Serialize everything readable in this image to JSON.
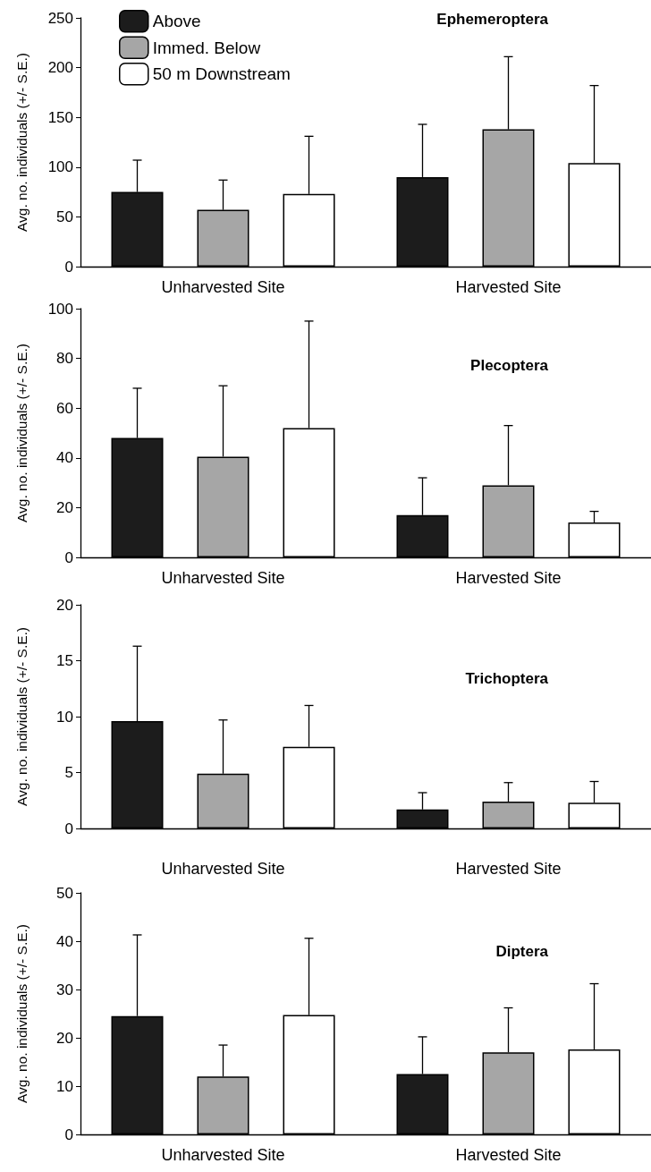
{
  "chart_data": [
    {
      "type": "bar",
      "title": "Ephemeroptera",
      "ylabel": "Avg. no. individuals (+/- S.E.)",
      "categories": [
        "Unharvested Site",
        "Harvested Site"
      ],
      "ylim": [
        0,
        250
      ],
      "yticks": [
        0,
        50,
        100,
        150,
        200,
        250
      ],
      "legend": "top left",
      "series": [
        {
          "name": "Above",
          "color": "#1c1c1c",
          "values": [
            75,
            90
          ],
          "errors": [
            [
              75,
              107
            ],
            [
              90,
              143
            ]
          ]
        },
        {
          "name": "Immed. Below",
          "color": "#a6a6a6",
          "values": [
            57,
            138
          ],
          "errors": [
            [
              57,
              87
            ],
            [
              138,
              211
            ]
          ]
        },
        {
          "name": "50 m Downstream",
          "color": "#ffffff",
          "values": [
            73,
            104
          ],
          "errors": [
            [
              73,
              131
            ],
            [
              104,
              182
            ]
          ]
        }
      ]
    },
    {
      "type": "bar",
      "title": "Plecoptera",
      "ylabel": "Avg. no. individuals (+/- S.E.)",
      "categories": [
        "Unharvested Site",
        "Harvested Site"
      ],
      "ylim": [
        0,
        100
      ],
      "yticks": [
        0,
        20,
        40,
        60,
        80,
        100
      ],
      "series": [
        {
          "color": "#1c1c1c",
          "values": [
            48,
            17
          ],
          "errors": [
            [
              48,
              68
            ],
            [
              17,
              32
            ]
          ]
        },
        {
          "color": "#a6a6a6",
          "values": [
            40.5,
            29
          ],
          "errors": [
            [
              40.5,
              69
            ],
            [
              29,
              53
            ]
          ]
        },
        {
          "color": "#ffffff",
          "values": [
            52,
            14
          ],
          "errors": [
            [
              52,
              95
            ],
            [
              14,
              18.5
            ]
          ]
        }
      ]
    },
    {
      "type": "bar",
      "title": "Trichoptera",
      "ylabel": "Avg. no. individuals (+/- S.E.)",
      "categories": [
        "Unharvested Site",
        "Harvested Site"
      ],
      "ylim": [
        0,
        20
      ],
      "yticks": [
        0,
        5,
        10,
        15,
        20
      ],
      "series": [
        {
          "color": "#1c1c1c",
          "values": [
            9.6,
            1.7
          ],
          "errors": [
            [
              9.6,
              16.3
            ],
            [
              1.7,
              3.2
            ]
          ]
        },
        {
          "color": "#a6a6a6",
          "values": [
            4.9,
            2.4
          ],
          "errors": [
            [
              4.9,
              9.7
            ],
            [
              2.4,
              4.1
            ]
          ]
        },
        {
          "color": "#ffffff",
          "values": [
            7.3,
            2.3
          ],
          "errors": [
            [
              7.3,
              11
            ],
            [
              2.3,
              4.2
            ]
          ]
        }
      ]
    },
    {
      "type": "bar",
      "title": "Diptera",
      "ylabel": "Avg. no. individuals (+/- S.E.)",
      "categories": [
        "Unharvested Site",
        "Harvested Site"
      ],
      "ylim": [
        0,
        50
      ],
      "yticks": [
        0,
        10,
        20,
        30,
        40,
        50
      ],
      "series": [
        {
          "color": "#1c1c1c",
          "values": [
            24.5,
            12.5
          ],
          "errors": [
            [
              24.5,
              41.3
            ],
            [
              12.5,
              20.2
            ]
          ]
        },
        {
          "color": "#a6a6a6",
          "values": [
            12,
            17
          ],
          "errors": [
            [
              12,
              18.5
            ],
            [
              17,
              26.2
            ]
          ]
        },
        {
          "color": "#ffffff",
          "values": [
            24.7,
            17.6
          ],
          "errors": [
            [
              24.7,
              40.6
            ],
            [
              17.6,
              31.2
            ]
          ]
        }
      ]
    }
  ]
}
